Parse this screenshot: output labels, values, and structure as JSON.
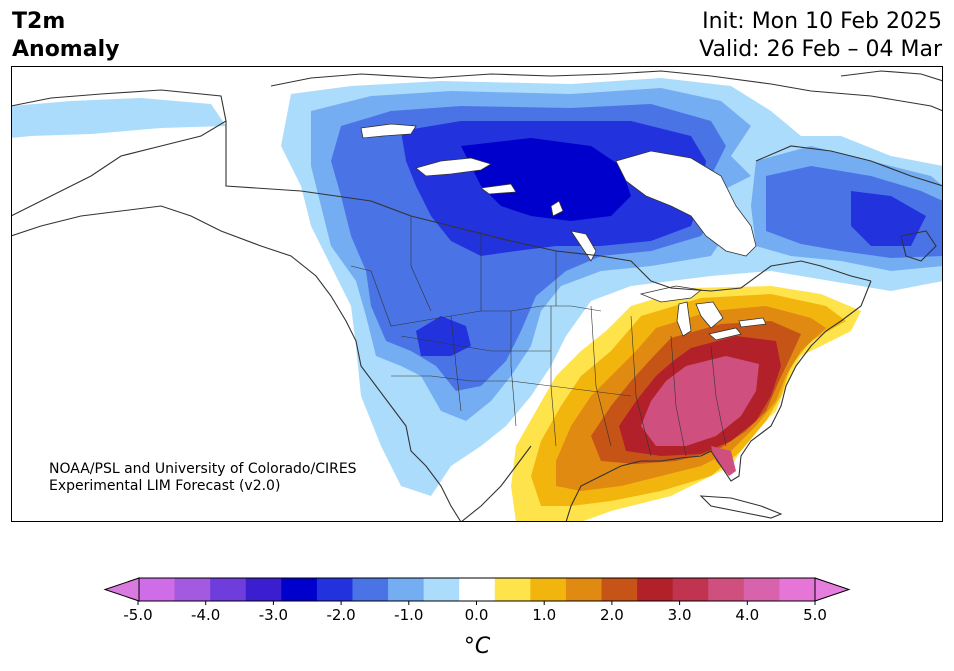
{
  "header": {
    "variable": "T2m",
    "variable_sub": "Anomaly",
    "init": "Init: Mon 10 Feb 2025",
    "valid": "Valid: 26 Feb – 04 Mar"
  },
  "credit": {
    "line1": "NOAA/PSL and University of Colorado/CIRES",
    "line2": "Experimental LIM Forecast (v2.0)"
  },
  "colorbar": {
    "unit": "°C",
    "tick_labels": [
      "-5.0",
      "-4.0",
      "-3.0",
      "-2.0",
      "-1.0",
      "0.0",
      "1.0",
      "2.0",
      "3.0",
      "4.0",
      "5.0"
    ],
    "levels": [
      -5.0,
      -4.5,
      -4.0,
      -3.5,
      -3.0,
      -2.5,
      -2.0,
      -1.5,
      -1.0,
      -0.5,
      0.5,
      1.0,
      1.5,
      2.0,
      2.5,
      3.0,
      3.5,
      4.0,
      4.5,
      5.0
    ],
    "colors": [
      "#cf6de8",
      "#a35ae0",
      "#6e3ddb",
      "#3a1ecf",
      "#0000cc",
      "#2233dd",
      "#4a74e6",
      "#74adf2",
      "#acdcfb",
      "#ffffff",
      "#ffe34a",
      "#f2b50e",
      "#e08a12",
      "#c65417",
      "#b2212a",
      "#c13450",
      "#cf4f7e",
      "#d962ad",
      "#e675d8"
    ],
    "under_color": "#d97ae0",
    "over_color": "#e57edd"
  },
  "map": {
    "region": "North America",
    "field": "2-m temperature anomaly forecast"
  }
}
